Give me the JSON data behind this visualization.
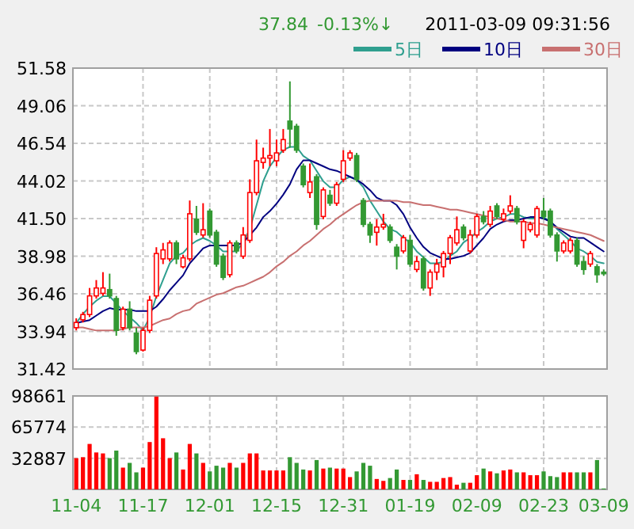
{
  "chart_data": [
    {
      "type": "candlestick",
      "annotations": [
        "37.84",
        "-0.13%↓",
        "2011-03-09 09:31:56"
      ],
      "categories": [
        null,
        null,
        null,
        null,
        null,
        null,
        null,
        null,
        null,
        null,
        null,
        null,
        null,
        null,
        null,
        null,
        null,
        null,
        null,
        null,
        null,
        null,
        null,
        null,
        null,
        null,
        null,
        null,
        null,
        null,
        null,
        null,
        null,
        null,
        null,
        null,
        null,
        null,
        null,
        null,
        null,
        null,
        null,
        null,
        null,
        null,
        null,
        null,
        null,
        null,
        null,
        null,
        null,
        null,
        null,
        null,
        null,
        null,
        null,
        null,
        null,
        null,
        null,
        null,
        null,
        null,
        null,
        null,
        null,
        null,
        null,
        null,
        null,
        null,
        null,
        null,
        null,
        null,
        null,
        null
      ],
      "ohlc": [
        [
          34.19,
          34.82,
          34.01,
          34.54
        ],
        [
          34.72,
          35.25,
          34.54,
          35.07
        ],
        [
          35.07,
          36.85,
          34.9,
          36.32
        ],
        [
          36.32,
          37.38,
          36.14,
          36.85
        ],
        [
          36.49,
          37.91,
          36.32,
          36.85
        ],
        [
          36.74,
          37.81,
          36.14,
          36.32
        ],
        [
          36.14,
          36.32,
          33.65,
          34.01
        ],
        [
          34.19,
          35.6,
          34.01,
          35.43
        ],
        [
          35.43,
          35.96,
          34.01,
          34.19
        ],
        [
          33.83,
          34.19,
          32.41,
          32.59
        ],
        [
          32.69,
          34.19,
          32.59,
          34.01
        ],
        [
          34.01,
          36.32,
          33.83,
          36.03
        ],
        [
          36.32,
          39.58,
          36.14,
          39.16
        ],
        [
          38.8,
          39.87,
          38.45,
          39.4
        ],
        [
          38.8,
          40.04,
          38.62,
          39.87
        ],
        [
          39.87,
          40.04,
          38.45,
          38.8
        ],
        [
          38.27,
          39.08,
          38.16,
          38.87
        ],
        [
          38.8,
          42.71,
          38.62,
          41.82
        ],
        [
          41.46,
          42.35,
          40.4,
          40.58
        ],
        [
          40.4,
          42.53,
          40.22,
          40.75
        ],
        [
          42.0,
          42.17,
          40.22,
          40.4
        ],
        [
          40.58,
          40.75,
          38.27,
          38.45
        ],
        [
          38.98,
          39.16,
          37.38,
          37.56
        ],
        [
          37.74,
          40.04,
          37.56,
          39.87
        ],
        [
          39.87,
          40.04,
          39.16,
          39.33
        ],
        [
          38.98,
          40.93,
          38.8,
          40.4
        ],
        [
          40.04,
          44.13,
          39.87,
          43.24
        ],
        [
          43.24,
          46.79,
          43.06,
          45.37
        ],
        [
          45.26,
          46.25,
          44.84,
          45.55
        ],
        [
          45.55,
          47.5,
          45.01,
          45.72
        ],
        [
          45.37,
          46.79,
          45.01,
          45.9
        ],
        [
          46.08,
          47.5,
          45.9,
          46.79
        ],
        [
          48.03,
          50.69,
          46.25,
          47.5
        ],
        [
          47.68,
          47.85,
          45.9,
          46.08
        ],
        [
          45.01,
          45.19,
          43.59,
          43.77
        ],
        [
          43.24,
          45.19,
          42.88,
          43.95
        ],
        [
          44.3,
          44.48,
          40.75,
          41.11
        ],
        [
          41.64,
          43.59,
          41.46,
          43.42
        ],
        [
          43.06,
          43.42,
          42.35,
          42.53
        ],
        [
          42.53,
          43.95,
          42.35,
          43.77
        ],
        [
          44.13,
          46.08,
          43.95,
          45.37
        ],
        [
          45.55,
          46.08,
          45.37,
          45.9
        ],
        [
          45.72,
          45.9,
          43.95,
          44.13
        ],
        [
          42.71,
          42.88,
          40.93,
          41.11
        ],
        [
          41.11,
          41.29,
          39.87,
          40.4
        ],
        [
          40.58,
          41.46,
          39.69,
          40.93
        ],
        [
          40.93,
          41.82,
          40.75,
          41.11
        ],
        [
          40.93,
          41.11,
          39.87,
          40.04
        ],
        [
          39.58,
          39.79,
          38.09,
          38.98
        ],
        [
          39.33,
          40.4,
          39.16,
          40.22
        ],
        [
          40.04,
          40.4,
          38.27,
          38.45
        ],
        [
          38.09,
          38.98,
          37.91,
          38.62
        ],
        [
          38.8,
          38.98,
          36.67,
          36.85
        ],
        [
          36.85,
          38.09,
          36.32,
          37.91
        ],
        [
          37.91,
          38.8,
          37.38,
          38.45
        ],
        [
          38.27,
          39.33,
          37.56,
          39.16
        ],
        [
          39.16,
          40.4,
          38.45,
          40.22
        ],
        [
          39.87,
          41.64,
          39.69,
          40.75
        ],
        [
          40.93,
          41.11,
          40.04,
          40.22
        ],
        [
          39.33,
          40.75,
          39.16,
          40.4
        ],
        [
          40.4,
          41.82,
          40.22,
          41.64
        ],
        [
          41.64,
          42.0,
          41.11,
          41.29
        ],
        [
          41.11,
          42.35,
          40.93,
          42.0
        ],
        [
          42.35,
          42.53,
          41.46,
          41.64
        ],
        [
          41.46,
          42.17,
          41.29,
          41.82
        ],
        [
          42.0,
          43.06,
          41.82,
          42.35
        ],
        [
          42.17,
          42.35,
          41.11,
          41.29
        ],
        [
          40.04,
          41.46,
          39.51,
          41.29
        ],
        [
          40.75,
          41.29,
          40.58,
          41.11
        ],
        [
          40.4,
          42.35,
          40.22,
          42.17
        ],
        [
          42.0,
          42.88,
          41.46,
          41.64
        ],
        [
          42.0,
          42.17,
          40.22,
          40.4
        ],
        [
          40.4,
          40.58,
          38.62,
          39.33
        ],
        [
          39.33,
          40.04,
          39.16,
          39.87
        ],
        [
          39.33,
          40.22,
          39.16,
          40.04
        ],
        [
          40.04,
          40.22,
          38.27,
          38.45
        ],
        [
          38.62,
          38.98,
          37.74,
          38.09
        ],
        [
          38.45,
          39.33,
          38.27,
          39.16
        ],
        [
          38.27,
          38.45,
          37.2,
          37.74
        ],
        [
          37.91,
          38.09,
          37.66,
          37.84
        ]
      ],
      "colors": [
        "#ff0000",
        "#ff0000",
        "#ff0000",
        "#ff0000",
        "#ff0000",
        "#339933",
        "#339933",
        "#ff0000",
        "#339933",
        "#339933",
        "#ff0000",
        "#ff0000",
        "#ff0000",
        "#ff0000",
        "#ff0000",
        "#339933",
        "#ff0000",
        "#ff0000",
        "#339933",
        "#ff0000",
        "#339933",
        "#339933",
        "#339933",
        "#ff0000",
        "#339933",
        "#ff0000",
        "#ff0000",
        "#ff0000",
        "#ff0000",
        "#ff0000",
        "#ff0000",
        "#ff0000",
        "#339933",
        "#339933",
        "#339933",
        "#ff0000",
        "#339933",
        "#ff0000",
        "#339933",
        "#ff0000",
        "#ff0000",
        "#ff0000",
        "#339933",
        "#339933",
        "#339933",
        "#ff0000",
        "#ff0000",
        "#339933",
        "#339933",
        "#ff0000",
        "#339933",
        "#ff0000",
        "#339933",
        "#ff0000",
        "#ff0000",
        "#ff0000",
        "#ff0000",
        "#ff0000",
        "#339933",
        "#ff0000",
        "#ff0000",
        "#339933",
        "#ff0000",
        "#339933",
        "#ff0000",
        "#ff0000",
        "#339933",
        "#ff0000",
        "#ff0000",
        "#ff0000",
        "#339933",
        "#339933",
        "#339933",
        "#ff0000",
        "#ff0000",
        "#339933",
        "#339933",
        "#ff0000",
        "#339933",
        "#339933"
      ],
      "series": [
        {
          "name": "5日",
          "type": "line",
          "color": "#2f9f8f",
          "values": [
            34.5,
            35.1,
            35.6,
            36.0,
            36.3,
            36.3,
            35.8,
            35.3,
            34.9,
            34.5,
            34.0,
            34.9,
            36.3,
            37.4,
            38.5,
            39.0,
            39.2,
            39.7,
            40.0,
            40.2,
            40.0,
            39.7,
            39.3,
            39.3,
            39.3,
            39.9,
            40.8,
            42.4,
            44.0,
            45.0,
            45.6,
            46.1,
            46.3,
            46.3,
            45.7,
            45.4,
            44.7,
            44.0,
            43.6,
            43.6,
            44.1,
            44.3,
            44.1,
            43.6,
            42.7,
            42.0,
            41.3,
            40.8,
            40.6,
            40.2,
            39.9,
            39.3,
            38.9,
            38.5,
            38.5,
            38.6,
            39.0,
            39.3,
            39.9,
            40.2,
            40.6,
            40.9,
            41.3,
            41.5,
            41.6,
            41.8,
            41.8,
            41.6,
            41.5,
            41.5,
            41.6,
            41.3,
            40.8,
            40.4,
            40.0,
            39.5,
            39.3,
            39.0,
            38.6,
            38.5
          ]
        },
        {
          "name": "10日",
          "type": "line",
          "color": "#000080",
          "values": [
            34.5,
            34.6,
            34.7,
            35.0,
            35.3,
            35.5,
            35.4,
            35.4,
            35.4,
            35.3,
            35.3,
            35.3,
            35.6,
            36.1,
            36.7,
            37.2,
            37.7,
            38.5,
            39.0,
            39.5,
            39.7,
            39.7,
            39.7,
            39.7,
            39.7,
            39.9,
            40.4,
            40.9,
            41.6,
            42.0,
            42.5,
            43.1,
            43.8,
            44.8,
            45.4,
            45.4,
            45.2,
            45.0,
            44.8,
            44.7,
            44.5,
            44.3,
            44.1,
            43.8,
            43.4,
            42.9,
            42.7,
            42.7,
            42.4,
            41.8,
            40.9,
            40.2,
            39.6,
            39.2,
            39.0,
            38.8,
            38.8,
            38.9,
            39.0,
            39.2,
            39.7,
            40.2,
            40.8,
            41.1,
            41.3,
            41.4,
            41.4,
            41.5,
            41.6,
            41.6,
            41.5,
            41.3,
            40.9,
            40.6,
            40.3,
            40.2,
            40.2,
            39.9,
            39.6,
            39.3
          ]
        },
        {
          "name": "30日",
          "type": "line",
          "color": "#c87070",
          "values": [
            34.2,
            34.2,
            34.1,
            34.0,
            34.0,
            34.0,
            34.0,
            34.1,
            34.2,
            34.2,
            34.2,
            34.3,
            34.5,
            34.7,
            34.8,
            35.1,
            35.3,
            35.4,
            35.8,
            36.0,
            36.2,
            36.4,
            36.5,
            36.7,
            36.9,
            37.0,
            37.2,
            37.4,
            37.6,
            37.9,
            38.3,
            38.6,
            39.0,
            39.3,
            39.7,
            40.0,
            40.4,
            40.8,
            41.1,
            41.5,
            41.8,
            42.1,
            42.4,
            42.6,
            42.7,
            42.7,
            42.7,
            42.7,
            42.7,
            42.6,
            42.6,
            42.5,
            42.4,
            42.4,
            42.3,
            42.2,
            42.1,
            42.1,
            42.0,
            41.9,
            41.8,
            41.7,
            41.6,
            41.5,
            41.4,
            41.3,
            41.3,
            41.3,
            41.2,
            41.2,
            41.1,
            41.0,
            40.9,
            40.8,
            40.7,
            40.6,
            40.5,
            40.4,
            40.2,
            40.0
          ]
        }
      ],
      "ylim": [
        31.42,
        51.58
      ],
      "yticks": [
        31.42,
        33.94,
        36.46,
        38.98,
        {
          "value": 41.5,
          "label": "41.50"
        },
        44.02,
        46.54,
        49.06,
        51.58
      ],
      "grid": true,
      "legend": "top right",
      "tick_labels": "y"
    },
    {
      "type": "bar",
      "categories": [
        "11-04",
        null,
        null,
        null,
        null,
        null,
        null,
        null,
        null,
        null,
        "11-17",
        null,
        null,
        null,
        null,
        null,
        null,
        null,
        null,
        null,
        "12-01",
        null,
        null,
        null,
        null,
        null,
        null,
        null,
        null,
        null,
        "12-15",
        null,
        null,
        null,
        null,
        null,
        null,
        null,
        null,
        null,
        "12-31",
        null,
        null,
        null,
        null,
        null,
        null,
        null,
        null,
        null,
        "01-19",
        null,
        null,
        null,
        null,
        null,
        null,
        null,
        null,
        null,
        "02-09",
        null,
        null,
        null,
        null,
        null,
        null,
        null,
        null,
        null,
        "02-23",
        null,
        null,
        null,
        null,
        null,
        null,
        null,
        null,
        "03-09"
      ],
      "values": [
        33000,
        34000,
        48000,
        39000,
        38000,
        33000,
        41000,
        23000,
        28000,
        18000,
        23000,
        50000,
        98000,
        54000,
        33000,
        39000,
        21000,
        48000,
        38000,
        28000,
        19000,
        25000,
        23000,
        28000,
        23000,
        28000,
        38000,
        38000,
        20000,
        20000,
        20000,
        20000,
        34000,
        28000,
        21000,
        20000,
        31000,
        22000,
        23000,
        22000,
        22000,
        13000,
        19000,
        28000,
        25000,
        11000,
        9000,
        12000,
        21000,
        10000,
        10000,
        16000,
        10000,
        8000,
        8000,
        12000,
        13000,
        5000,
        7000,
        7000,
        15000,
        22000,
        19000,
        17000,
        20000,
        21000,
        18000,
        18000,
        15000,
        15000,
        19000,
        14000,
        13000,
        18000,
        18000,
        18000,
        18000,
        18000,
        31000,
        1000
      ],
      "colors": [
        "#ff0000",
        "#ff0000",
        "#ff0000",
        "#ff0000",
        "#ff0000",
        "#339933",
        "#339933",
        "#ff0000",
        "#339933",
        "#339933",
        "#ff0000",
        "#ff0000",
        "#ff0000",
        "#ff0000",
        "#ff0000",
        "#339933",
        "#ff0000",
        "#ff0000",
        "#339933",
        "#ff0000",
        "#339933",
        "#339933",
        "#339933",
        "#ff0000",
        "#339933",
        "#ff0000",
        "#ff0000",
        "#ff0000",
        "#ff0000",
        "#ff0000",
        "#ff0000",
        "#ff0000",
        "#339933",
        "#339933",
        "#339933",
        "#ff0000",
        "#339933",
        "#ff0000",
        "#339933",
        "#ff0000",
        "#ff0000",
        "#ff0000",
        "#339933",
        "#339933",
        "#339933",
        "#ff0000",
        "#ff0000",
        "#339933",
        "#339933",
        "#ff0000",
        "#339933",
        "#ff0000",
        "#339933",
        "#ff0000",
        "#ff0000",
        "#ff0000",
        "#ff0000",
        "#ff0000",
        "#339933",
        "#ff0000",
        "#ff0000",
        "#339933",
        "#ff0000",
        "#339933",
        "#ff0000",
        "#ff0000",
        "#339933",
        "#ff0000",
        "#ff0000",
        "#ff0000",
        "#339933",
        "#339933",
        "#339933",
        "#ff0000",
        "#ff0000",
        "#339933",
        "#339933",
        "#ff0000",
        "#339933",
        "#339933"
      ],
      "ylim": [
        0,
        98661
      ],
      "yticks": [
        32887,
        65774,
        98661
      ],
      "grid": true
    }
  ]
}
